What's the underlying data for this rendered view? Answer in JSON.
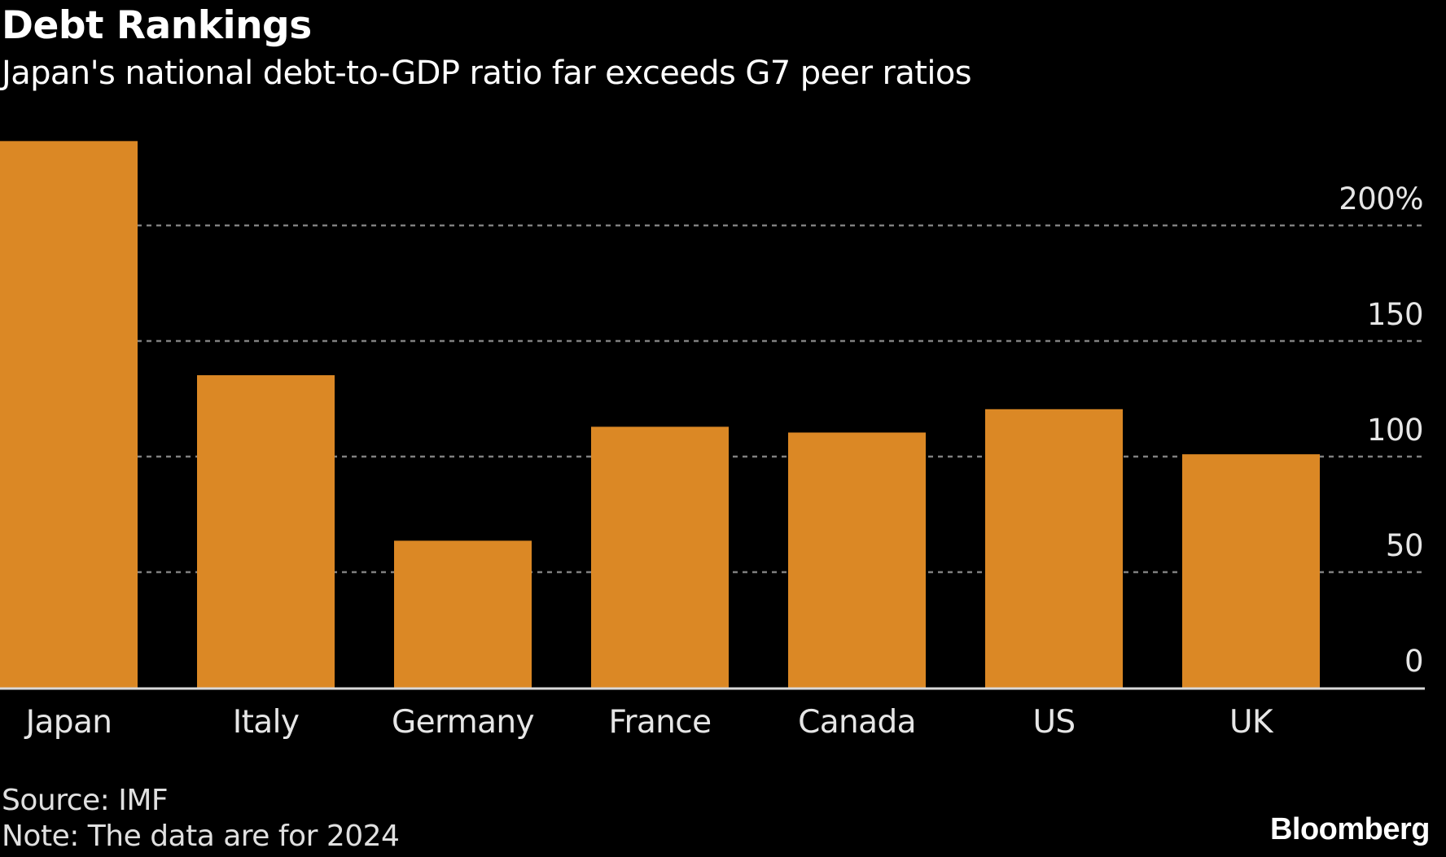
{
  "header": {
    "title": "Debt Rankings",
    "subtitle": "Japan's national debt-to-GDP ratio far exceeds G7 peer ratios"
  },
  "footer": {
    "source": "Source: IMF",
    "note": "Note: The data are for 2024",
    "brand": "Bloomberg"
  },
  "colors": {
    "bar": "#DB8825",
    "background": "#000000",
    "gridline": "#808080",
    "axis": "#d9d9d9",
    "text": "#e6e6e6"
  },
  "chart_data": {
    "type": "bar",
    "title": "Debt Rankings",
    "subtitle": "Japan's national debt-to-GDP ratio far exceeds G7 peer ratios",
    "xlabel": "",
    "ylabel": "",
    "categories": [
      "Japan",
      "Italy",
      "Germany",
      "France",
      "Canada",
      "US",
      "UK"
    ],
    "values": [
      236.5,
      135.2,
      63.6,
      112.9,
      110.4,
      120.5,
      101.0
    ],
    "unit": "% of GDP",
    "ylim": [
      0,
      240
    ],
    "yticks": [
      0,
      50,
      100,
      150,
      200
    ],
    "ytick_labels": [
      "0",
      "50",
      "100",
      "150",
      "200%"
    ],
    "y_axis_position": "right",
    "grid": true,
    "grid_style": "dotted",
    "legend": "none",
    "source": "Source: IMF",
    "note": "Note: The data are for 2024"
  }
}
